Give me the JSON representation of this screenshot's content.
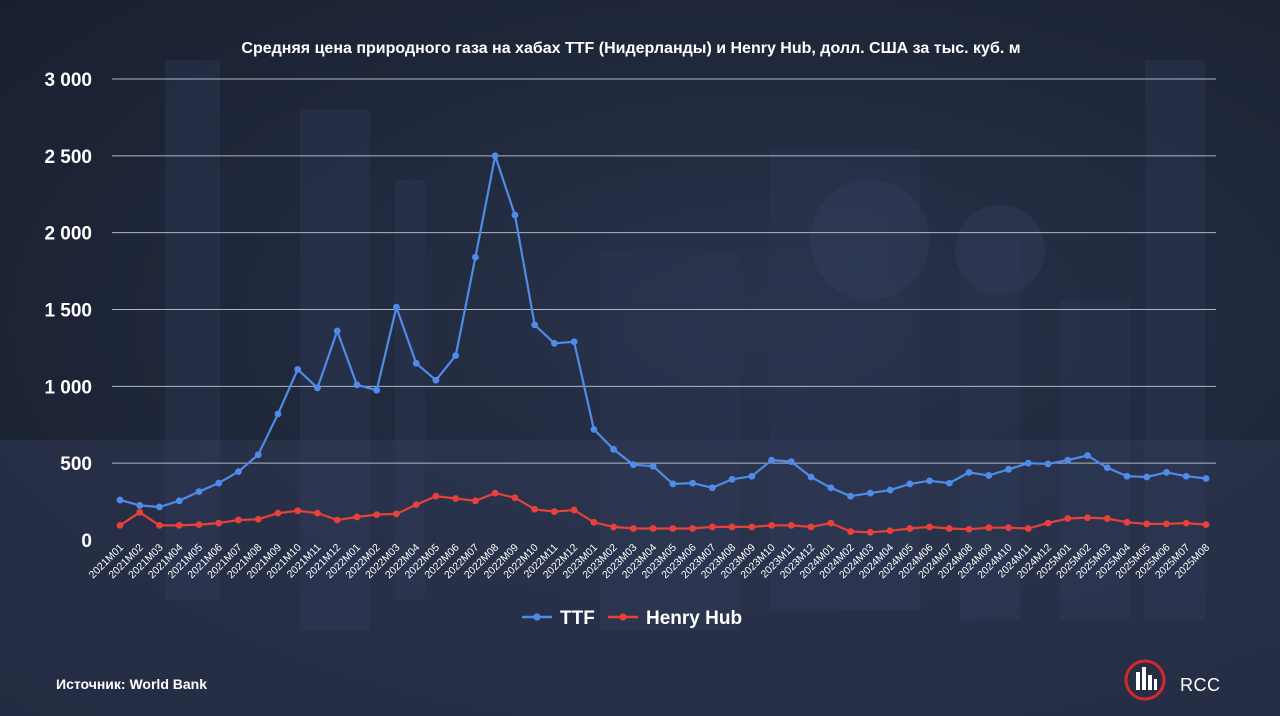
{
  "source": "Источник: World Bank",
  "brand": "RCC",
  "logo_icon": "rcc-logo-icon",
  "colors": {
    "ttf": "#4f8be8",
    "henry_hub": "#e8403a",
    "grid": "#c9ced8",
    "text": "#ffffff",
    "logo_ring": "#d9252b"
  },
  "chart_data": {
    "type": "line",
    "title": "Средняя цена природного газа на хабах TTF (Нидерланды) и Henry Hub, долл. США за тыс. куб. м",
    "xlabel": "",
    "ylabel": "",
    "ylim": [
      0,
      3000
    ],
    "yticks": [
      0,
      500,
      1000,
      1500,
      2000,
      2500,
      3000
    ],
    "ytick_labels": [
      "0",
      "500",
      "1 000",
      "1 500",
      "2 000",
      "2 500",
      "3 000"
    ],
    "grid": true,
    "legend_position": "bottom-center",
    "categories": [
      "2021M01",
      "2021M02",
      "2021M03",
      "2021M04",
      "2021M05",
      "2021M06",
      "2021M07",
      "2021M08",
      "2021M09",
      "2021M10",
      "2021M11",
      "2021M12",
      "2022M01",
      "2022M02",
      "2022M03",
      "2022M04",
      "2022M05",
      "2022M06",
      "2022M07",
      "2022M08",
      "2022M09",
      "2022M10",
      "2022M11",
      "2022M12",
      "2023M01",
      "2023M02",
      "2023M03",
      "2023M04",
      "2023M05",
      "2023M06",
      "2023M07",
      "2023M08",
      "2023M09",
      "2023M10",
      "2023M11",
      "2023M12",
      "2024M01",
      "2024M02",
      "2024M03",
      "2024M04",
      "2024M05",
      "2024M06",
      "2024M07",
      "2024M08",
      "2024M09",
      "2024M10",
      "2024M11",
      "2024M12",
      "2025M01",
      "2025M02",
      "2025M03",
      "2025M04",
      "2025M05",
      "2025M06",
      "2025M07",
      "2025M08"
    ],
    "series": [
      {
        "name": "TTF",
        "color": "#4f8be8",
        "values": [
          260,
          225,
          215,
          255,
          315,
          370,
          445,
          555,
          820,
          1110,
          990,
          1360,
          1010,
          975,
          1515,
          1150,
          1040,
          1200,
          1840,
          2500,
          2115,
          1400,
          1280,
          1290,
          720,
          590,
          490,
          480,
          365,
          370,
          340,
          395,
          415,
          520,
          510,
          410,
          340,
          285,
          305,
          325,
          365,
          385,
          370,
          440,
          420,
          460,
          500,
          495,
          520,
          550,
          470,
          415,
          410,
          440,
          415,
          400
        ]
      },
      {
        "name": "Henry Hub",
        "color": "#e8403a",
        "values": [
          95,
          180,
          95,
          95,
          100,
          110,
          130,
          135,
          175,
          190,
          175,
          130,
          150,
          165,
          170,
          230,
          285,
          270,
          255,
          305,
          275,
          200,
          185,
          195,
          115,
          85,
          75,
          75,
          75,
          75,
          85,
          85,
          85,
          95,
          95,
          85,
          110,
          55,
          50,
          60,
          75,
          85,
          75,
          70,
          80,
          80,
          75,
          110,
          140,
          145,
          140,
          115,
          105,
          105,
          110,
          100
        ]
      }
    ]
  }
}
